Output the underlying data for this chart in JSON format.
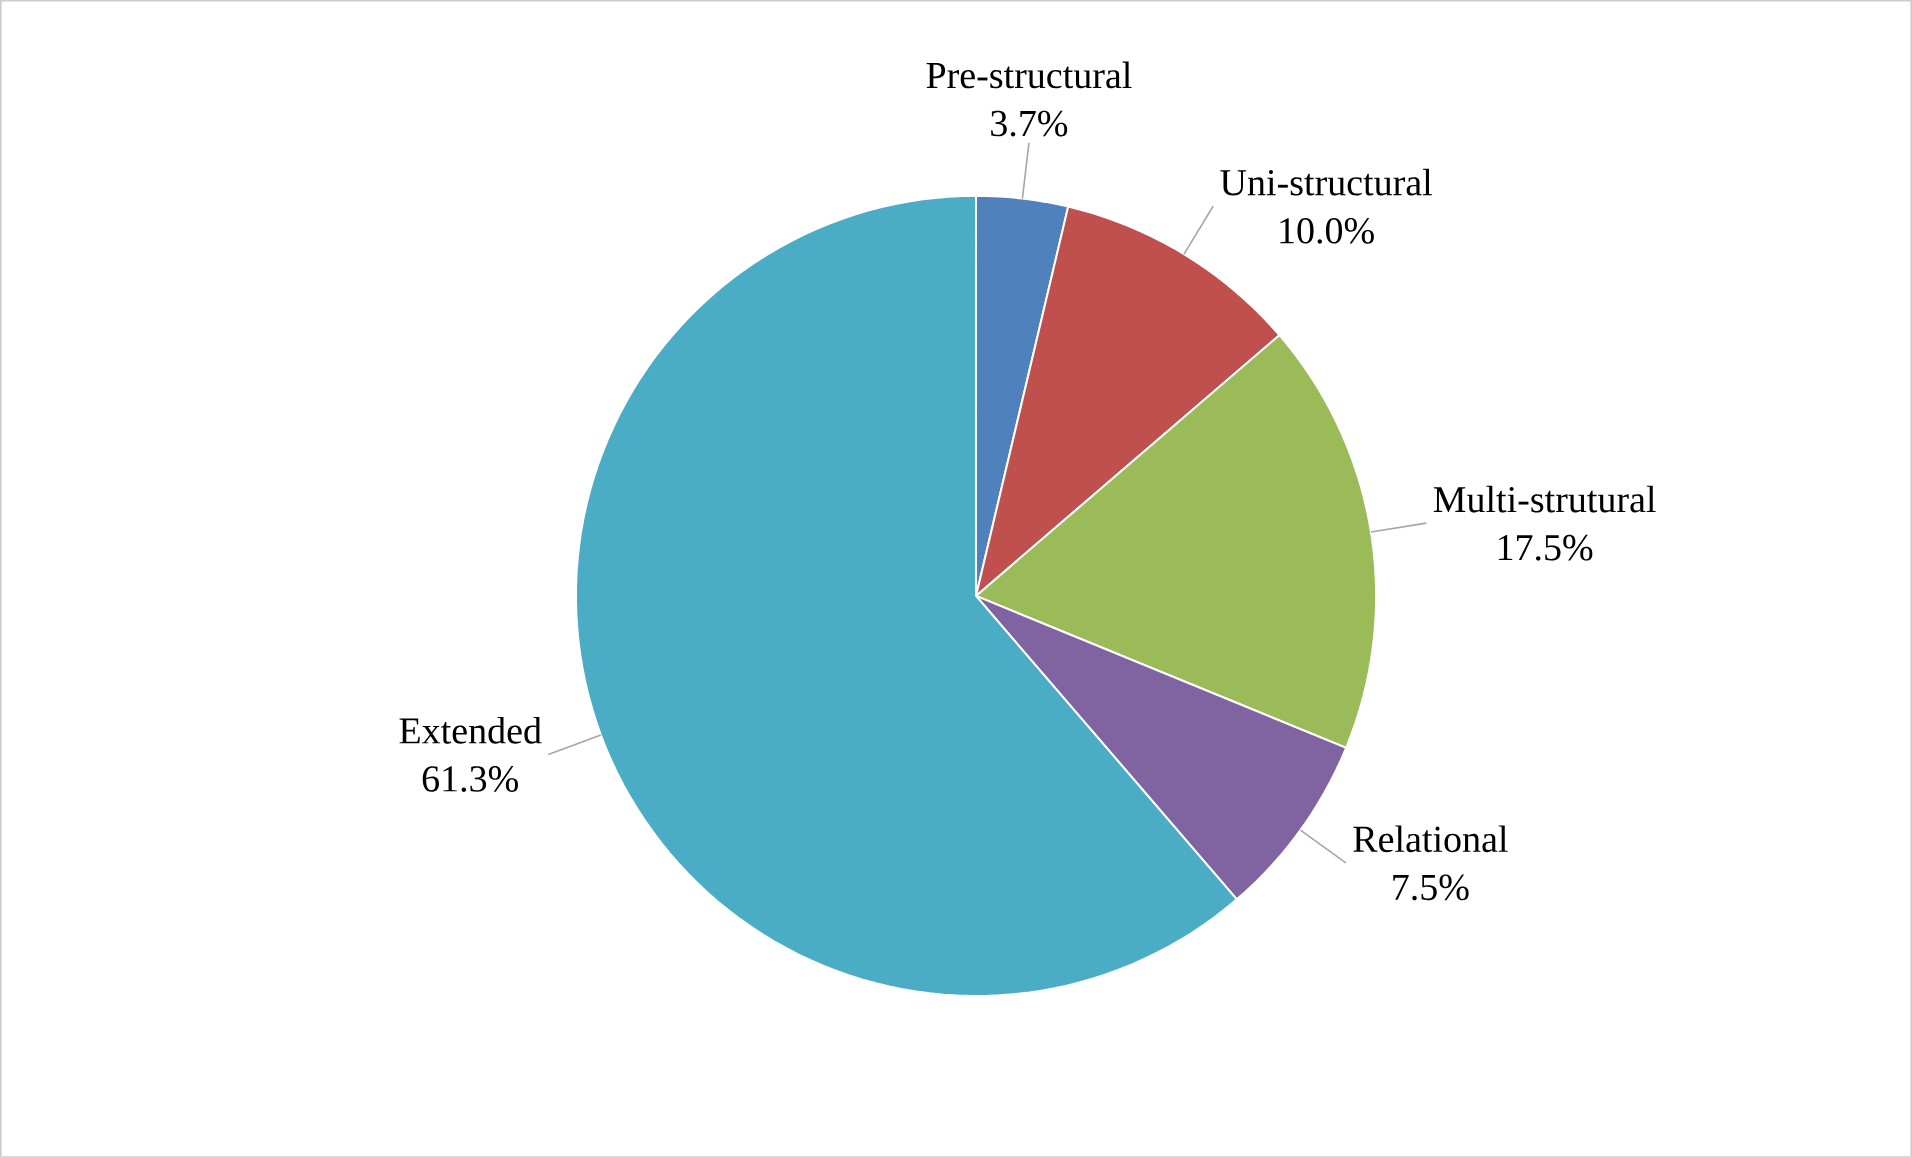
{
  "chart_data": {
    "type": "pie",
    "categories": [
      "Pre-structural",
      "Uni-structural",
      "Multi-strutural",
      "Relational",
      "Extended"
    ],
    "values": [
      3.7,
      10.0,
      17.5,
      7.5,
      61.3
    ],
    "value_labels": [
      "3.7%",
      "10.0%",
      "17.5%",
      "7.5%",
      "61.3%"
    ],
    "colors": [
      "#4f81bd",
      "#c0504d",
      "#9bbb59",
      "#8064a2",
      "#4bacc6"
    ]
  }
}
